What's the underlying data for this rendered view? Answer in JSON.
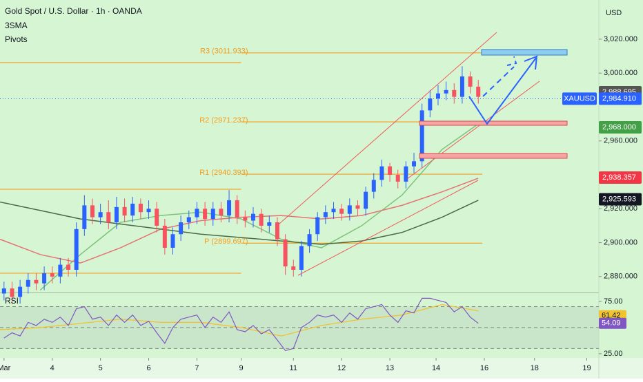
{
  "chart_data": {
    "type": "candlestick",
    "title": "Gold Spot / U.S. Dollar · 1h · OANDA",
    "indicators": [
      "3SMA",
      "Pivots"
    ],
    "currency": "USD",
    "symbol": "XAUUSD",
    "up_color": "#2962ff",
    "down_color": "#f7525f",
    "x": [
      2,
      6,
      10,
      14,
      18,
      22,
      26,
      30,
      34,
      38,
      42,
      46,
      50,
      54,
      58,
      62,
      66,
      70,
      74,
      78,
      82,
      86,
      90,
      94,
      98,
      102,
      106,
      110,
      114,
      118,
      122,
      126,
      130,
      134,
      138,
      142,
      146,
      150,
      154,
      158,
      162,
      166,
      170,
      174,
      178,
      182,
      186,
      190,
      194,
      198,
      202,
      206,
      210,
      214,
      218,
      222,
      226,
      230,
      234,
      238
    ],
    "open": [
      2870,
      2873,
      2868,
      2874,
      2878,
      2876,
      2882,
      2880,
      2887,
      2884,
      2908,
      2922,
      2915,
      2918,
      2912,
      2921,
      2916,
      2923,
      2918,
      2920,
      2910,
      2897,
      2905,
      2912,
      2915,
      2920,
      2914,
      2920,
      2916,
      2925,
      2915,
      2913,
      2917,
      2910,
      2912,
      2902,
      2886,
      2884,
      2898,
      2905,
      2915,
      2918,
      2920,
      2917,
      2922,
      2920,
      2930,
      2937,
      2945,
      2940,
      2936,
      2945,
      2948,
      2978,
      2985,
      2988,
      2990,
      2986,
      2998,
      2992
    ],
    "high": [
      2877,
      2877,
      2878,
      2882,
      2882,
      2886,
      2886,
      2891,
      2891,
      2912,
      2928,
      2926,
      2923,
      2925,
      2927,
      2926,
      2927,
      2926,
      2925,
      2924,
      2914,
      2909,
      2916,
      2919,
      2924,
      2924,
      2924,
      2924,
      2931,
      2928,
      2919,
      2921,
      2920,
      2916,
      2915,
      2905,
      2890,
      2901,
      2908,
      2918,
      2922,
      2924,
      2923,
      2926,
      2925,
      2933,
      2941,
      2949,
      2947,
      2943,
      2948,
      2953,
      2982,
      2990,
      2993,
      2995,
      2994,
      3004,
      3001,
      2996
    ],
    "low": [
      2866,
      2864,
      2864,
      2870,
      2872,
      2872,
      2876,
      2876,
      2880,
      2880,
      2904,
      2911,
      2911,
      2908,
      2908,
      2912,
      2912,
      2914,
      2914,
      2906,
      2893,
      2893,
      2901,
      2908,
      2911,
      2910,
      2910,
      2912,
      2912,
      2911,
      2909,
      2909,
      2906,
      2906,
      2898,
      2881,
      2880,
      2880,
      2894,
      2901,
      2911,
      2914,
      2913,
      2913,
      2916,
      2916,
      2926,
      2933,
      2936,
      2932,
      2932,
      2941,
      2944,
      2974,
      2981,
      2984,
      2982,
      2982,
      2988,
      2982
    ],
    "close": [
      2873,
      2868,
      2874,
      2878,
      2876,
      2882,
      2880,
      2887,
      2884,
      2908,
      2922,
      2915,
      2918,
      2912,
      2921,
      2916,
      2923,
      2918,
      2920,
      2910,
      2897,
      2905,
      2912,
      2915,
      2920,
      2914,
      2920,
      2916,
      2925,
      2915,
      2913,
      2917,
      2910,
      2912,
      2902,
      2886,
      2884,
      2898,
      2905,
      2915,
      2918,
      2920,
      2917,
      2922,
      2920,
      2930,
      2937,
      2945,
      2940,
      2936,
      2945,
      2948,
      2978,
      2985,
      2988,
      2990,
      2986,
      2998,
      2992,
      2986
    ],
    "xlim": [
      0,
      298
    ],
    "xticks": [
      {
        "value": 2,
        "label": "Mar"
      },
      {
        "value": 26,
        "label": "4"
      },
      {
        "value": 50,
        "label": "5"
      },
      {
        "value": 74,
        "label": "6"
      },
      {
        "value": 98,
        "label": "7"
      },
      {
        "value": 120,
        "label": "9"
      },
      {
        "value": 146,
        "label": "11"
      },
      {
        "value": 170,
        "label": "12"
      },
      {
        "value": 194,
        "label": "13"
      },
      {
        "value": 217,
        "label": "14"
      },
      {
        "value": 241,
        "label": "16"
      },
      {
        "value": 266,
        "label": "18"
      },
      {
        "value": 292,
        "label": "19"
      }
    ],
    "ylim": [
      2870.6,
      3043.1
    ],
    "yticks": [
      {
        "value": 3020,
        "label": "3,020.000"
      },
      {
        "value": 3000,
        "label": "3,000.000"
      },
      {
        "value": 2960,
        "label": "2,960.000"
      },
      {
        "value": 2920,
        "label": "2,920.000"
      },
      {
        "value": 2900,
        "label": "2,900.000"
      },
      {
        "value": 2880,
        "label": "2,880.000"
      }
    ],
    "sma": {
      "x": [
        0,
        20,
        40,
        60,
        80,
        100,
        120,
        140,
        160,
        180,
        200,
        220,
        238
      ],
      "series": [
        {
          "color": "#7cc47c",
          "values": [
            null,
            2872,
            2893,
            2912,
            2916,
            2918,
            2914,
            2902,
            2897,
            2910,
            2928,
            2955,
            2970
          ]
        },
        {
          "color": "#e57373",
          "values": [
            2902,
            2893,
            2888,
            2897,
            2908,
            2913,
            2915,
            2916,
            2914,
            2916,
            2922,
            2930,
            2938
          ]
        },
        {
          "color": "#4a6b44",
          "values": [
            2924,
            2919,
            2914,
            2911,
            2908,
            2905,
            2903,
            2901,
            2899,
            2901,
            2906,
            2915,
            2925
          ]
        }
      ]
    },
    "pivot_color": "#f59c1a",
    "pivot_span": [
      120,
      240
    ],
    "pivots": [
      {
        "label": "R3 (3011.933)",
        "value": 3011.933
      },
      {
        "label": "R2 (2971.237)",
        "value": 2971.237
      },
      {
        "label": "R1 (2940.393)",
        "value": 2940.393
      },
      {
        "label": "P (2899.697)",
        "value": 2899.697
      }
    ],
    "previous_pivot_span": [
      0,
      120
    ],
    "previous_pivots": [
      3006.2,
      2931.5,
      2882
    ],
    "price_labels": [
      {
        "label": "2,988.695",
        "value": 2988.695,
        "color": "#555555"
      },
      {
        "label": "2,984.910",
        "value": 2984.91,
        "color": "#2962ff",
        "current": true
      },
      {
        "label": "2,968.000",
        "value": 2968.0,
        "color": "#43a047"
      },
      {
        "label": "2,938.357",
        "value": 2938.357,
        "color": "#f23645"
      },
      {
        "label": "2,925.593",
        "value": 2925.593,
        "color": "#131722"
      }
    ],
    "rsi": {
      "title": "RSI",
      "color": "#7e57c2",
      "ylim": [
        21,
        83.5
      ],
      "yticks": [
        {
          "value": 75,
          "label": "75.00"
        },
        {
          "value": 25,
          "label": "25.00"
        }
      ],
      "levels": [
        70,
        50,
        30
      ],
      "values": [
        40,
        45,
        42,
        55,
        52,
        58,
        55,
        60,
        52,
        68,
        70,
        58,
        60,
        52,
        62,
        55,
        62,
        52,
        56,
        45,
        35,
        50,
        58,
        60,
        62,
        50,
        60,
        55,
        65,
        48,
        46,
        52,
        44,
        48,
        38,
        28,
        30,
        50,
        55,
        62,
        60,
        62,
        55,
        64,
        58,
        68,
        70,
        72,
        62,
        55,
        66,
        64,
        78,
        78,
        76,
        74,
        65,
        70,
        60,
        54
      ],
      "ma": {
        "color": "#f0c330",
        "x": [
          0,
          20,
          40,
          60,
          80,
          100,
          120,
          140,
          160,
          180,
          200,
          220,
          238
        ],
        "values": [
          48,
          50,
          54,
          58,
          55,
          55,
          50,
          42,
          52,
          58,
          62,
          72,
          66
        ]
      },
      "badges": [
        {
          "label": "61.42",
          "value": 61.42,
          "color": "#f0c330"
        },
        {
          "label": "54.09",
          "value": 54.09,
          "color": "#7e57c2"
        }
      ]
    }
  }
}
